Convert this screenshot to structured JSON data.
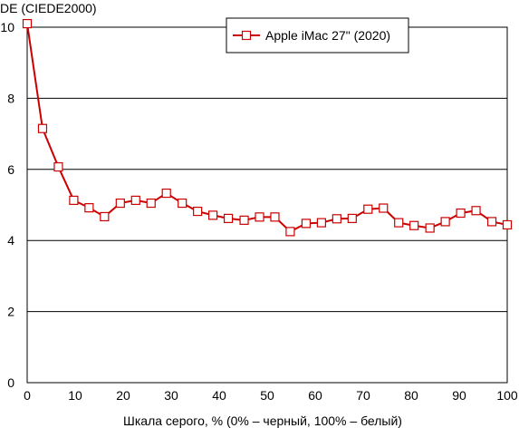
{
  "chart_data": {
    "type": "line",
    "ylabel": "DE (CIEDE2000)",
    "xlabel": "Шкала серого, % (0% – черный, 100% – белый)",
    "xlim": [
      0,
      100
    ],
    "ylim": [
      0,
      10
    ],
    "xticks": [
      "0",
      "10",
      "20",
      "30",
      "40",
      "50",
      "60",
      "70",
      "80",
      "90",
      "100"
    ],
    "yticks": [
      "0",
      "2",
      "4",
      "6",
      "8",
      "10"
    ],
    "grid": "horizontal",
    "legend": "top-right",
    "series": [
      {
        "name": "Apple iMac 27\" (2020)",
        "color": "#cc0000",
        "marker": "square-open",
        "x": [
          0,
          3.2,
          6.5,
          9.7,
          12.9,
          16.1,
          19.4,
          22.6,
          25.8,
          29.0,
          32.3,
          35.5,
          38.7,
          41.9,
          45.2,
          48.4,
          51.6,
          54.8,
          58.1,
          61.3,
          64.5,
          67.7,
          71.0,
          74.2,
          77.4,
          80.6,
          83.9,
          87.1,
          90.3,
          93.5,
          96.8,
          100
        ],
        "y": [
          10.1,
          7.15,
          6.07,
          5.13,
          4.92,
          4.67,
          5.05,
          5.13,
          5.05,
          5.33,
          5.05,
          4.82,
          4.71,
          4.62,
          4.57,
          4.66,
          4.66,
          4.25,
          4.48,
          4.5,
          4.61,
          4.62,
          4.88,
          4.91,
          4.5,
          4.42,
          4.35,
          4.53,
          4.77,
          4.84,
          4.53,
          4.44
        ]
      }
    ]
  }
}
